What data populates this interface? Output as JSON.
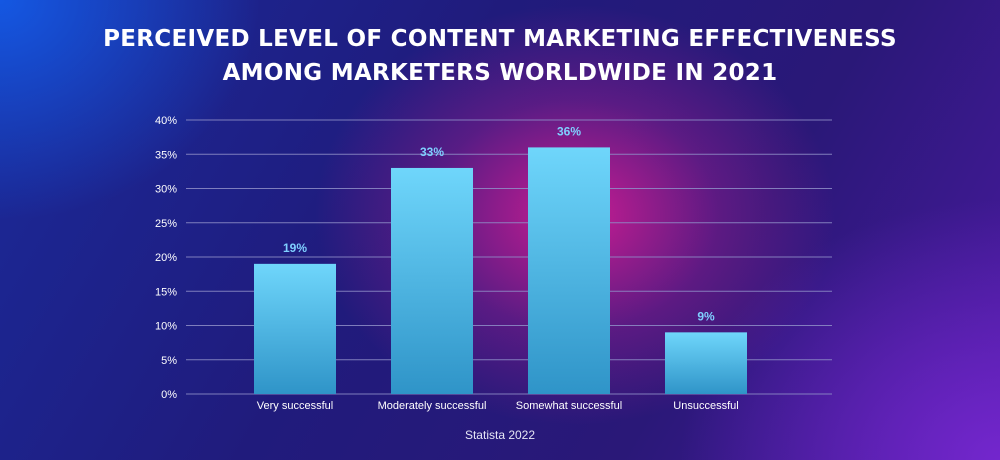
{
  "title": {
    "line1": "PERCEIVED LEVEL OF CONTENT MARKETING EFFECTIVENESS",
    "line2": "AMONG MARKETERS WORLDWIDE IN 2021"
  },
  "source": "Statista 2022",
  "colors": {
    "bar_top": "#6fd6fb",
    "bar_bottom": "#2f94c8",
    "value_label": "#7fd0ff",
    "grid": "#8f8fc8",
    "tick_text": "#ffffff"
  },
  "chart_data": {
    "type": "bar",
    "categories": [
      "Very successful",
      "Moderately successful",
      "Somewhat successful",
      "Unsuccessful"
    ],
    "values": [
      19,
      33,
      36,
      9
    ],
    "value_labels": [
      "19%",
      "33%",
      "36%",
      "9%"
    ],
    "title": "PERCEIVED LEVEL OF CONTENT MARKETING EFFECTIVENESS AMONG MARKETERS WORLDWIDE IN 2021",
    "xlabel": "",
    "ylabel": "",
    "ylim": [
      0,
      40
    ],
    "yticks": [
      0,
      5,
      10,
      15,
      20,
      25,
      30,
      35,
      40
    ],
    "ytick_labels": [
      "0%",
      "5%",
      "10%",
      "15%",
      "20%",
      "25%",
      "30%",
      "35%",
      "40%"
    ],
    "grid": true,
    "legend": "none"
  }
}
